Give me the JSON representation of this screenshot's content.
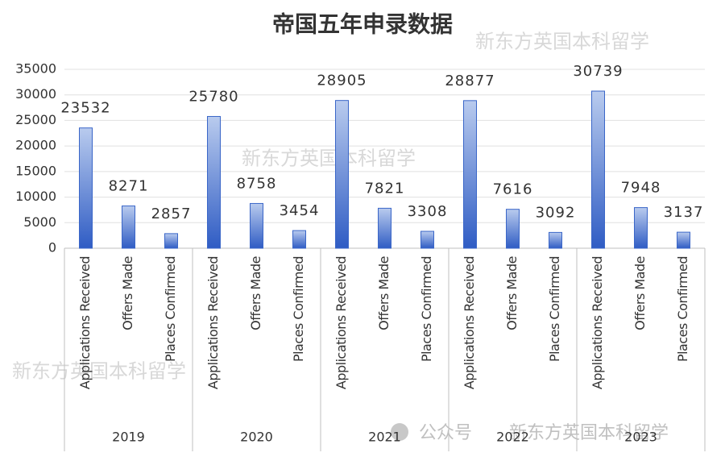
{
  "chart_data": {
    "type": "bar",
    "title": "帝国五年申录数据",
    "groups": [
      "2019",
      "2020",
      "2021",
      "2022",
      "2023"
    ],
    "categories": [
      "Applications Received",
      "Offers Made",
      "Places Confirmed",
      "Applications Received",
      "Offers Made",
      "Places Confirmed",
      "Applications Received",
      "Offers Made",
      "Places Confirmed",
      "Applications Received",
      "Offers Made",
      "Places Confirmed",
      "Applications Received",
      "Offers Made",
      "Places Confirmed"
    ],
    "values": [
      23532,
      8271,
      2857,
      25780,
      8758,
      3454,
      28905,
      7821,
      3308,
      28877,
      7616,
      3092,
      30739,
      7948,
      3137
    ],
    "color": "#3a66c8",
    "ylim": [
      0,
      35000
    ],
    "yticks": [
      0,
      5000,
      10000,
      15000,
      20000,
      25000,
      30000,
      35000
    ],
    "grid": true,
    "annotations": [
      "新东方英国本科留学",
      "新东方英国本科留学",
      "新东方英国本科留学",
      "公众号",
      "新东方英国本科留学"
    ]
  }
}
